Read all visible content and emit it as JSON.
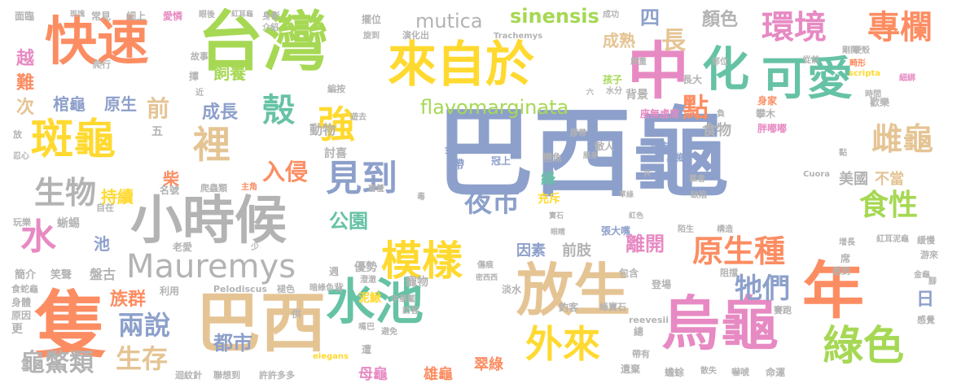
{
  "palette": {
    "blue": "#8da0cb",
    "green": "#a6d854",
    "yellow": "#ffd92f",
    "orange": "#fc8d62",
    "teal": "#66c2a5",
    "pink": "#e78ac3",
    "tan": "#e5c494",
    "gray": "#b3b3b3"
  },
  "words": [
    {
      "text": "巴西龜",
      "color": "#8da0cb",
      "size": 120
    },
    {
      "text": "台灣",
      "color": "#a6d854",
      "size": 80
    },
    {
      "text": "快速",
      "color": "#fc8d62",
      "size": 64
    },
    {
      "text": "巴西",
      "color": "#e5c494",
      "size": 80
    },
    {
      "text": "烏龜",
      "color": "#e78ac3",
      "size": 72
    },
    {
      "text": "小時候",
      "color": "#b3b3b3",
      "size": 64
    },
    {
      "text": "斑龜",
      "color": "#ffd92f",
      "size": 52
    },
    {
      "text": "隻",
      "color": "#fc8d62",
      "size": 90
    },
    {
      "text": "放生",
      "color": "#e5c494",
      "size": 70
    },
    {
      "text": "水池",
      "color": "#66c2a5",
      "size": 60
    },
    {
      "text": "年",
      "color": "#fc8d62",
      "size": 76
    },
    {
      "text": "中",
      "color": "#e78ac3",
      "size": 76
    },
    {
      "text": "來自於",
      "color": "#ffd92f",
      "size": 60
    },
    {
      "text": "可愛",
      "color": "#66c2a5",
      "size": 56
    },
    {
      "text": "化",
      "color": "#66c2a5",
      "size": 58
    },
    {
      "text": "殼",
      "color": "#66c2a5",
      "size": 40
    },
    {
      "text": "強",
      "color": "#ffd92f",
      "size": 46
    },
    {
      "text": "裡",
      "color": "#e5c494",
      "size": 46
    },
    {
      "text": "模樣",
      "color": "#ffd92f",
      "size": 50
    },
    {
      "text": "外來",
      "color": "#ffd92f",
      "size": 46
    },
    {
      "text": "綠色",
      "color": "#a6d854",
      "size": 50
    },
    {
      "text": "雌龜",
      "color": "#e5c494",
      "size": 38
    },
    {
      "text": "食性",
      "color": "#a6d854",
      "size": 36
    },
    {
      "text": "Mauremys",
      "color": "#b3b3b3",
      "size": 40
    },
    {
      "text": "見到",
      "color": "#8da0cb",
      "size": 44
    },
    {
      "text": "環境",
      "color": "#e78ac3",
      "size": 40
    },
    {
      "text": "專欄",
      "color": "#fc8d62",
      "size": 40
    },
    {
      "text": "原生種",
      "color": "#fc8d62",
      "size": 38
    },
    {
      "text": "生物",
      "color": "#b3b3b3",
      "size": 38
    },
    {
      "text": "水",
      "color": "#e78ac3",
      "size": 44
    },
    {
      "text": "夜市",
      "color": "#8da0cb",
      "size": 34
    },
    {
      "text": "牠們",
      "color": "#8da0cb",
      "size": 34
    },
    {
      "text": "兩說",
      "color": "#8da0cb",
      "size": 32
    },
    {
      "text": "生存",
      "color": "#e5c494",
      "size": 32
    },
    {
      "text": "龜鱉類",
      "color": "#b3b3b3",
      "size": 30
    },
    {
      "text": "都市",
      "color": "#8da0cb",
      "size": 24
    },
    {
      "text": "入侵",
      "color": "#fc8d62",
      "size": 28
    },
    {
      "text": "公園",
      "color": "#66c2a5",
      "size": 24
    },
    {
      "text": "sinensis",
      "color": "#a6d854",
      "size": 24
    },
    {
      "text": "mutica",
      "color": "#b3b3b3",
      "size": 24
    },
    {
      "text": "flavomarginata",
      "color": "#a6d854",
      "size": 24
    },
    {
      "text": "點",
      "color": "#fc8d62",
      "size": 32
    },
    {
      "text": "成長",
      "color": "#8da0cb",
      "size": 22
    },
    {
      "text": "前",
      "color": "#e5c494",
      "size": 28
    },
    {
      "text": "長",
      "color": "#e5c494",
      "size": 30
    },
    {
      "text": "四",
      "color": "#8da0cb",
      "size": 24
    },
    {
      "text": "顏色",
      "color": "#b3b3b3",
      "size": 22
    },
    {
      "text": "成熟",
      "color": "#e5c494",
      "size": 20
    },
    {
      "text": "飼養",
      "color": "#a6d854",
      "size": 20
    },
    {
      "text": "棺龜",
      "color": "#8da0cb",
      "size": 20
    },
    {
      "text": "原生",
      "color": "#8da0cb",
      "size": 20
    },
    {
      "text": "次",
      "color": "#e5c494",
      "size": 22
    },
    {
      "text": "難",
      "color": "#fc8d62",
      "size": 22
    },
    {
      "text": "越",
      "color": "#e78ac3",
      "size": 22
    },
    {
      "text": "持續",
      "color": "#ffd92f",
      "size": 20
    },
    {
      "text": "池",
      "color": "#8da0cb",
      "size": 20
    },
    {
      "text": "柴",
      "color": "#fc8d62",
      "size": 20
    },
    {
      "text": "族群",
      "color": "#fc8d62",
      "size": 22
    },
    {
      "text": "離開",
      "color": "#e78ac3",
      "size": 24
    },
    {
      "text": "食物",
      "color": "#b3b3b3",
      "size": 18
    },
    {
      "text": "美國",
      "color": "#b3b3b3",
      "size": 18
    },
    {
      "text": "不當",
      "color": "#e5c494",
      "size": 18
    },
    {
      "text": "日",
      "color": "#8da0cb",
      "size": 22
    },
    {
      "text": "因素",
      "color": "#8da0cb",
      "size": 18
    },
    {
      "text": "前肢",
      "color": "#b3b3b3",
      "size": 18
    },
    {
      "text": "母龜",
      "color": "#e78ac3",
      "size": 18
    },
    {
      "text": "雄龜",
      "color": "#fc8d62",
      "size": 18
    },
    {
      "text": "翠綠",
      "color": "#fc8d62",
      "size": 18
    },
    {
      "text": "動物",
      "color": "#b3b3b3",
      "size": 16
    },
    {
      "text": "討喜",
      "color": "#b3b3b3",
      "size": 14
    },
    {
      "text": "金魚",
      "color": "#8da0cb",
      "size": 12
    },
    {
      "text": "帶",
      "color": "#8da0cb",
      "size": 14
    },
    {
      "text": "冠上",
      "color": "#8da0cb",
      "size": 12
    },
    {
      "text": "城市",
      "color": "#8da0cb",
      "size": 12
    },
    {
      "text": "敵人",
      "color": "#b3b3b3",
      "size": 12
    },
    {
      "text": "張大嘴",
      "color": "#8da0cb",
      "size": 12
    },
    {
      "text": "綠",
      "color": "#66c2a5",
      "size": 18
    },
    {
      "text": "寵物",
      "color": "#b3b3b3",
      "size": 14
    },
    {
      "text": "泥鰍",
      "color": "#ffd92f",
      "size": 14
    },
    {
      "text": "優勢",
      "color": "#b3b3b3",
      "size": 14
    },
    {
      "text": "充斥",
      "color": "#ffd92f",
      "size": 14
    },
    {
      "text": "撈魚",
      "color": "#b3b3b3",
      "size": 12
    },
    {
      "text": "異鄉",
      "color": "#8da0cb",
      "size": 12
    },
    {
      "text": "座無虛席",
      "color": "#e78ac3",
      "size": 12
    },
    {
      "text": "背景",
      "color": "#b3b3b3",
      "size": 14
    },
    {
      "text": "孩子",
      "color": "#a6d854",
      "size": 12
    },
    {
      "text": "長大",
      "color": "#b3b3b3",
      "size": 12
    },
    {
      "text": "身家",
      "color": "#fc8d62",
      "size": 12
    },
    {
      "text": "歡樂",
      "color": "#b3b3b3",
      "size": 12
    },
    {
      "text": "攀木",
      "color": "#b3b3b3",
      "size": 12
    },
    {
      "text": "胖嘟嘟",
      "color": "#e78ac3",
      "size": 12
    },
    {
      "text": "擺位",
      "color": "#b3b3b3",
      "size": 12
    },
    {
      "text": "演化出",
      "color": "#b3b3b3",
      "size": 11
    },
    {
      "text": "故事",
      "color": "#b3b3b3",
      "size": 11
    },
    {
      "text": "爬行",
      "color": "#b3b3b3",
      "size": 11
    },
    {
      "text": "面臨",
      "color": "#b3b3b3",
      "size": 12
    },
    {
      "text": "常見",
      "color": "#b3b3b3",
      "size": 12
    },
    {
      "text": "細上",
      "color": "#b3b3b3",
      "size": 12
    },
    {
      "text": "愛憐",
      "color": "#e78ac3",
      "size": 12
    },
    {
      "text": "身影",
      "color": "#b3b3b3",
      "size": 11
    },
    {
      "text": "成功",
      "color": "#b3b3b3",
      "size": 10
    },
    {
      "text": "剛開",
      "color": "#b3b3b3",
      "size": 10
    },
    {
      "text": "細綁",
      "color": "#e78ac3",
      "size": 10
    },
    {
      "text": "從前",
      "color": "#b3b3b3",
      "size": 10
    },
    {
      "text": "畸形",
      "color": "#fc8d62",
      "size": 10
    },
    {
      "text": "硬殼",
      "color": "#b3b3b3",
      "size": 10
    },
    {
      "text": "部位",
      "color": "#b3b3b3",
      "size": 10
    },
    {
      "text": "厚重",
      "color": "#b3b3b3",
      "size": 10
    },
    {
      "text": "時間",
      "color": "#b3b3b3",
      "size": 10
    },
    {
      "text": "Trachemys",
      "color": "#b3b3b3",
      "size": 10
    },
    {
      "text": "scripta",
      "color": "#ffd92f",
      "size": 10
    },
    {
      "text": "五",
      "color": "#b3b3b3",
      "size": 14
    },
    {
      "text": "名號",
      "color": "#b3b3b3",
      "size": 12
    },
    {
      "text": "爬蟲類",
      "color": "#b3b3b3",
      "size": 11
    },
    {
      "text": "主角",
      "color": "#fc8d62",
      "size": 10
    },
    {
      "text": "自在",
      "color": "#b3b3b3",
      "size": 11
    },
    {
      "text": "蜥蜴",
      "color": "#b3b3b3",
      "size": 14
    },
    {
      "text": "玩樂",
      "color": "#b3b3b3",
      "size": 11
    },
    {
      "text": "老愛",
      "color": "#b3b3b3",
      "size": 12
    },
    {
      "text": "盤",
      "color": "#b3b3b3",
      "size": 16
    },
    {
      "text": "古",
      "color": "#b3b3b3",
      "size": 16
    },
    {
      "text": "簡介",
      "color": "#b3b3b3",
      "size": 13
    },
    {
      "text": "笑聲",
      "color": "#b3b3b3",
      "size": 13
    },
    {
      "text": "利用",
      "color": "#b3b3b3",
      "size": 12
    },
    {
      "text": "食蛇龜",
      "color": "#b3b3b3",
      "size": 11
    },
    {
      "text": "身體",
      "color": "#b3b3b3",
      "size": 12
    },
    {
      "text": "原因",
      "color": "#b3b3b3",
      "size": 12
    },
    {
      "text": "更",
      "color": "#b3b3b3",
      "size": 14
    },
    {
      "text": "Pelodiscus",
      "color": "#b3b3b3",
      "size": 11
    },
    {
      "text": "褪色",
      "color": "#b3b3b3",
      "size": 11
    },
    {
      "text": "暗綠色",
      "color": "#b3b3b3",
      "size": 10
    },
    {
      "text": "淡水",
      "color": "#b3b3b3",
      "size": 12
    },
    {
      "text": "包含",
      "color": "#b3b3b3",
      "size": 12
    },
    {
      "text": "登場",
      "color": "#b3b3b3",
      "size": 12
    },
    {
      "text": "阻擋",
      "color": "#b3b3b3",
      "size": 11
    },
    {
      "text": "賽跑",
      "color": "#b3b3b3",
      "size": 11
    },
    {
      "text": "感到",
      "color": "#b3b3b3",
      "size": 11
    },
    {
      "text": "席",
      "color": "#b3b3b3",
      "size": 12
    },
    {
      "text": "增長",
      "color": "#b3b3b3",
      "size": 10
    },
    {
      "text": "紅耳泥龜",
      "color": "#b3b3b3",
      "size": 10
    },
    {
      "text": "緩慢",
      "color": "#b3b3b3",
      "size": 11
    },
    {
      "text": "游來",
      "color": "#b3b3b3",
      "size": 11
    },
    {
      "text": "金龜",
      "color": "#b3b3b3",
      "size": 10
    },
    {
      "text": "腳",
      "color": "#b3b3b3",
      "size": 10
    },
    {
      "text": "感覺",
      "color": "#b3b3b3",
      "size": 11
    },
    {
      "text": "帶有",
      "color": "#b3b3b3",
      "size": 11
    },
    {
      "text": "遺棄",
      "color": "#b3b3b3",
      "size": 12
    },
    {
      "text": "蟾蜍",
      "color": "#b3b3b3",
      "size": 12
    },
    {
      "text": "散失",
      "color": "#b3b3b3",
      "size": 10
    },
    {
      "text": "嚇唬",
      "color": "#b3b3b3",
      "size": 11
    },
    {
      "text": "命運",
      "color": "#b3b3b3",
      "size": 12
    },
    {
      "text": "綠寶石",
      "color": "#b3b3b3",
      "size": 11
    },
    {
      "text": "釣客",
      "color": "#b3b3b3",
      "size": 12
    },
    {
      "text": "總",
      "color": "#b3b3b3",
      "size": 12
    },
    {
      "text": "reevesii",
      "color": "#b3b3b3",
      "size": 11
    },
    {
      "text": "中華鱉",
      "color": "#b3b3b3",
      "size": 10
    },
    {
      "text": "訪客",
      "color": "#b3b3b3",
      "size": 10
    },
    {
      "text": "遭",
      "color": "#b3b3b3",
      "size": 12
    },
    {
      "text": "嘴巴",
      "color": "#b3b3b3",
      "size": 10
    },
    {
      "text": "elegans",
      "color": "#ffd92f",
      "size": 10
    },
    {
      "text": "許許多多",
      "color": "#b3b3b3",
      "size": 11
    },
    {
      "text": "聯想到",
      "color": "#b3b3b3",
      "size": 11
    },
    {
      "text": "迴紋針",
      "color": "#b3b3b3",
      "size": 11
    },
    {
      "text": "供",
      "color": "#b3b3b3",
      "size": 12
    },
    {
      "text": "背",
      "color": "#b3b3b3",
      "size": 12
    },
    {
      "text": "澄澈",
      "color": "#b3b3b3",
      "size": 10
    },
    {
      "text": "傷痕",
      "color": "#b3b3b3",
      "size": 10
    },
    {
      "text": "密西西",
      "color": "#b3b3b3",
      "size": 9
    },
    {
      "text": "週",
      "color": "#b3b3b3",
      "size": 12
    },
    {
      "text": "少",
      "color": "#b3b3b3",
      "size": 10
    },
    {
      "text": "避免",
      "color": "#b3b3b3",
      "size": 10
    },
    {
      "text": "害羞",
      "color": "#b3b3b3",
      "size": 10
    },
    {
      "text": "遊去",
      "color": "#b3b3b3",
      "size": 10
    },
    {
      "text": "近",
      "color": "#b3b3b3",
      "size": 10
    },
    {
      "text": "擇",
      "color": "#b3b3b3",
      "size": 12
    },
    {
      "text": "編按",
      "color": "#b3b3b3",
      "size": 11
    },
    {
      "text": "旋到",
      "color": "#b3b3b3",
      "size": 10
    },
    {
      "text": "介紹",
      "color": "#b3b3b3",
      "size": 10
    },
    {
      "text": "眼後",
      "color": "#b3b3b3",
      "size": 10
    },
    {
      "text": "紅耳龜",
      "color": "#b3b3b3",
      "size": 9
    },
    {
      "text": "斑塊",
      "color": "#b3b3b3",
      "size": 9
    },
    {
      "text": "Cuora",
      "color": "#b3b3b3",
      "size": 10
    },
    {
      "text": "膠帶",
      "color": "#b3b3b3",
      "size": 10
    },
    {
      "text": "腰身",
      "color": "#b3b3b3",
      "size": 9
    },
    {
      "text": "共",
      "color": "#b3b3b3",
      "size": 9
    },
    {
      "text": "草綠",
      "color": "#b3b3b3",
      "size": 9
    },
    {
      "text": "紅色",
      "color": "#b3b3b3",
      "size": 9
    },
    {
      "text": "寶石",
      "color": "#b3b3b3",
      "size": 9
    },
    {
      "text": "眼睛",
      "color": "#b3b3b3",
      "size": 9
    },
    {
      "text": "陌生",
      "color": "#b3b3b3",
      "size": 10
    },
    {
      "text": "構造",
      "color": "#b3b3b3",
      "size": 10
    },
    {
      "text": "缺陷",
      "color": "#b3b3b3",
      "size": 10
    },
    {
      "text": "業者",
      "color": "#b3b3b3",
      "size": 10
    },
    {
      "text": "黏",
      "color": "#b3b3b3",
      "size": 10
    },
    {
      "text": "毒",
      "color": "#b3b3b3",
      "size": 10
    },
    {
      "text": "放",
      "color": "#b3b3b3",
      "size": 11
    },
    {
      "text": "忍心",
      "color": "#b3b3b3",
      "size": 10
    },
    {
      "text": "水分",
      "color": "#b3b3b3",
      "size": 10
    },
    {
      "text": "六",
      "color": "#b3b3b3",
      "size": 9
    },
    {
      "text": "負",
      "color": "#b3b3b3",
      "size": 10
    }
  ]
}
